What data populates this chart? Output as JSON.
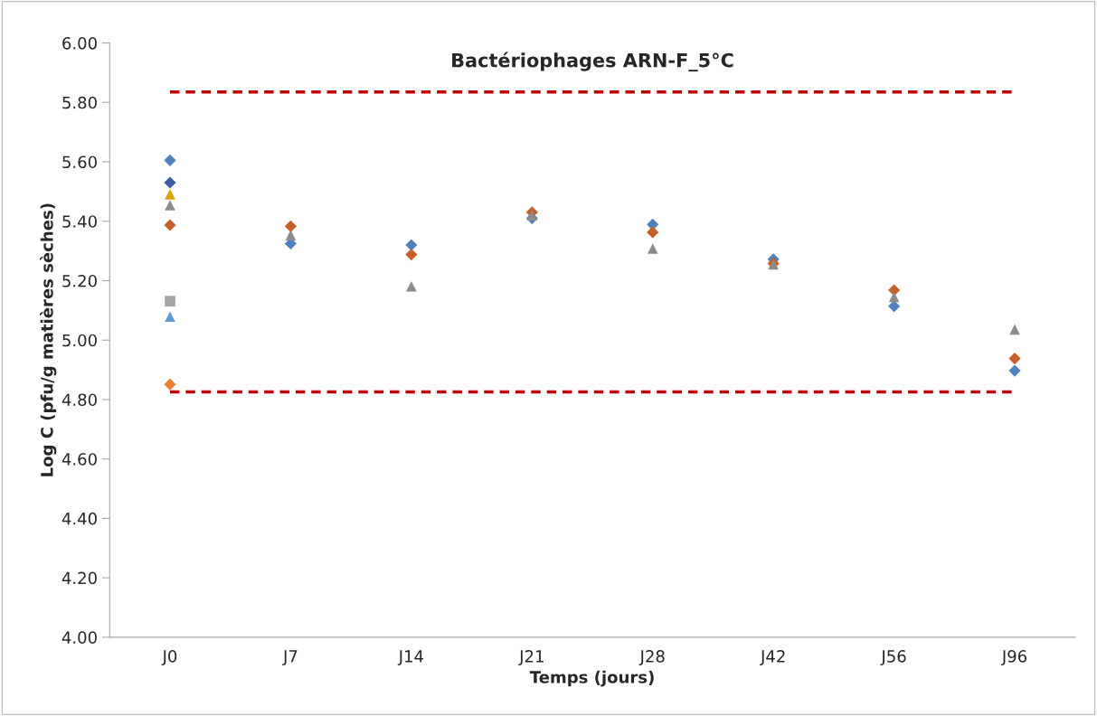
{
  "chart_data": {
    "type": "scatter",
    "title": "Bactériophages ARN-F_5°C",
    "xlabel": "Temps (jours)",
    "ylabel": "Log C (pfu/g matières sèches)",
    "categories": [
      "J0",
      "J7",
      "J14",
      "J21",
      "J28",
      "J42",
      "J56",
      "J96"
    ],
    "ylim": [
      4.0,
      6.0
    ],
    "yticks": [
      {
        "value": 4.0,
        "label": "4.00"
      },
      {
        "value": 4.2,
        "label": "4.20"
      },
      {
        "value": 4.4,
        "label": "4.40"
      },
      {
        "value": 4.6,
        "label": "4.60"
      },
      {
        "value": 4.8,
        "label": "4.80"
      },
      {
        "value": 5.0,
        "label": "5.00"
      },
      {
        "value": 5.2,
        "label": "5.20"
      },
      {
        "value": 5.4,
        "label": "5.40"
      },
      {
        "value": 5.6,
        "label": "5.60"
      },
      {
        "value": 5.8,
        "label": "5.80"
      },
      {
        "value": 6.0,
        "label": "6.00"
      }
    ],
    "grid": false,
    "legend": false,
    "ref_lines": [
      {
        "axis": "y",
        "value": 5.835,
        "color": "#c00000",
        "line_style": "dashed"
      },
      {
        "axis": "y",
        "value": 4.826,
        "color": "#c00000",
        "line_style": "dashed"
      }
    ],
    "series": [
      {
        "color": "#4f81bd",
        "marker": "diamond",
        "values": [
          5.605,
          5.325,
          5.32,
          5.41,
          5.389,
          5.272,
          5.114,
          4.897
        ]
      },
      {
        "color": "#c65f28",
        "marker": "diamond",
        "values": [
          5.387,
          5.383,
          5.288,
          5.43,
          5.363,
          5.258,
          5.168,
          4.938
        ]
      },
      {
        "color": "#8c8c8c",
        "marker": "triangle",
        "values": [
          5.454,
          5.353,
          5.181,
          5.42,
          5.308,
          5.255,
          5.145,
          5.036
        ]
      },
      {
        "color": "#3a5fa8",
        "marker": "diamond",
        "values": [
          5.53,
          null,
          null,
          null,
          null,
          null,
          null,
          null
        ]
      },
      {
        "color": "#d9a400",
        "marker": "triangle",
        "values": [
          5.491,
          null,
          null,
          null,
          null,
          null,
          null,
          null
        ]
      },
      {
        "color": "#a6a6a6",
        "marker": "square",
        "values": [
          5.131,
          null,
          null,
          null,
          null,
          null,
          null,
          null
        ]
      },
      {
        "color": "#5b9bd5",
        "marker": "triangle",
        "values": [
          5.079,
          null,
          null,
          null,
          null,
          null,
          null,
          null
        ]
      },
      {
        "color": "#ed7d31",
        "marker": "diamond",
        "values": [
          4.851,
          null,
          null,
          null,
          null,
          null,
          null,
          null
        ]
      }
    ]
  }
}
